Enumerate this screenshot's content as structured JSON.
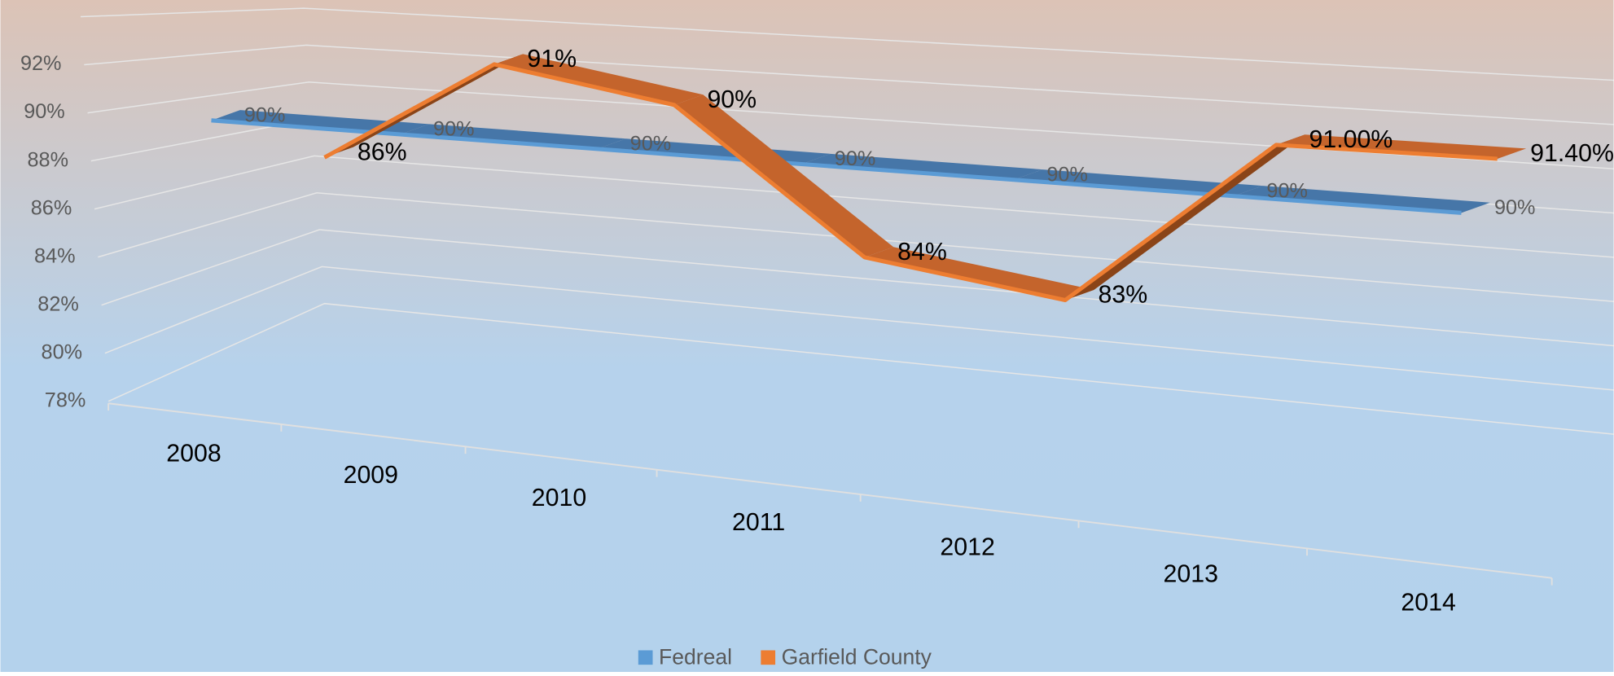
{
  "chart_data": {
    "type": "line3d",
    "categories": [
      "2008",
      "2009",
      "2010",
      "2011",
      "2012",
      "2013",
      "2014"
    ],
    "series": [
      {
        "name": "Fedreal",
        "color": "#5b9bd5",
        "values": [
          90,
          90,
          90,
          90,
          90,
          90,
          90
        ],
        "value_labels": [
          "90%",
          "90%",
          "90%",
          "90%",
          "90%",
          "90%",
          "90%"
        ]
      },
      {
        "name": "Garfield County",
        "color": "#ed7d31",
        "values": [
          86,
          91,
          90,
          84,
          83,
          91,
          91.4
        ],
        "value_labels": [
          "86%",
          "91%",
          "90%",
          "84%",
          "83%",
          "91.00%",
          "91.40%"
        ]
      }
    ],
    "ylim": [
      78,
      94
    ],
    "yticks": [
      {
        "value": 78,
        "label": "78%"
      },
      {
        "value": 80,
        "label": "80%"
      },
      {
        "value": 82,
        "label": "82%"
      },
      {
        "value": 84,
        "label": "84%"
      },
      {
        "value": 86,
        "label": "86%"
      },
      {
        "value": 88,
        "label": "88%"
      },
      {
        "value": 90,
        "label": "90%"
      },
      {
        "value": 92,
        "label": "92%"
      }
    ],
    "grid": true,
    "legend": "bottom"
  }
}
